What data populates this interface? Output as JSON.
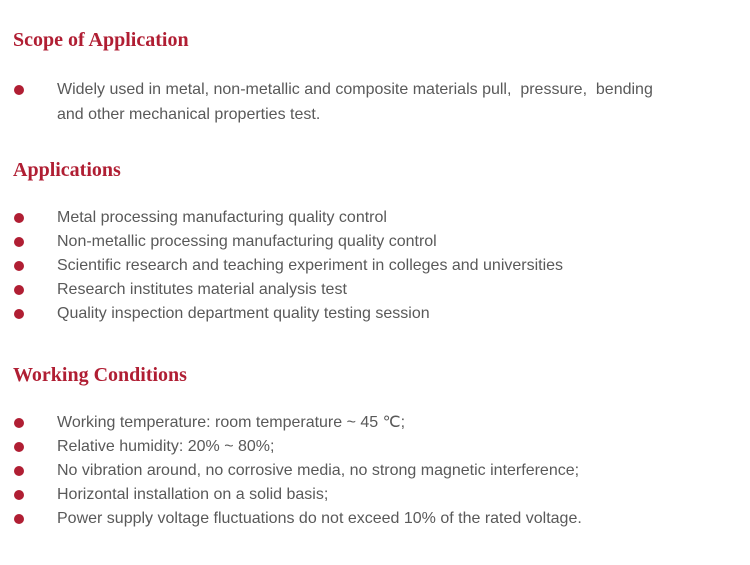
{
  "theme": {
    "background": "#ffffff",
    "accent_color": "#b01e33",
    "body_text_color": "#595959",
    "bullet_icon": "filled-circle"
  },
  "sections": [
    {
      "title": "Scope of Application",
      "items": [
        "Widely used in metal, non-metallic and composite materials pull,  pressure,  bending and other mechanical properties test."
      ]
    },
    {
      "title": "Applications",
      "items": [
        "Metal processing manufacturing quality control",
        "Non-metallic processing manufacturing quality control",
        "Scientific research and teaching experiment in colleges and universities",
        "Research institutes material analysis test",
        "Quality inspection department quality testing session"
      ]
    },
    {
      "title": "Working Conditions",
      "items": [
        "Working temperature: room temperature ~ 45 ℃;",
        "Relative humidity: 20% ~ 80%;",
        "No vibration around, no corrosive media, no strong magnetic interference;",
        "Horizontal installation on a solid basis;",
        "Power supply voltage fluctuations do not exceed 10% of the rated voltage."
      ]
    }
  ]
}
